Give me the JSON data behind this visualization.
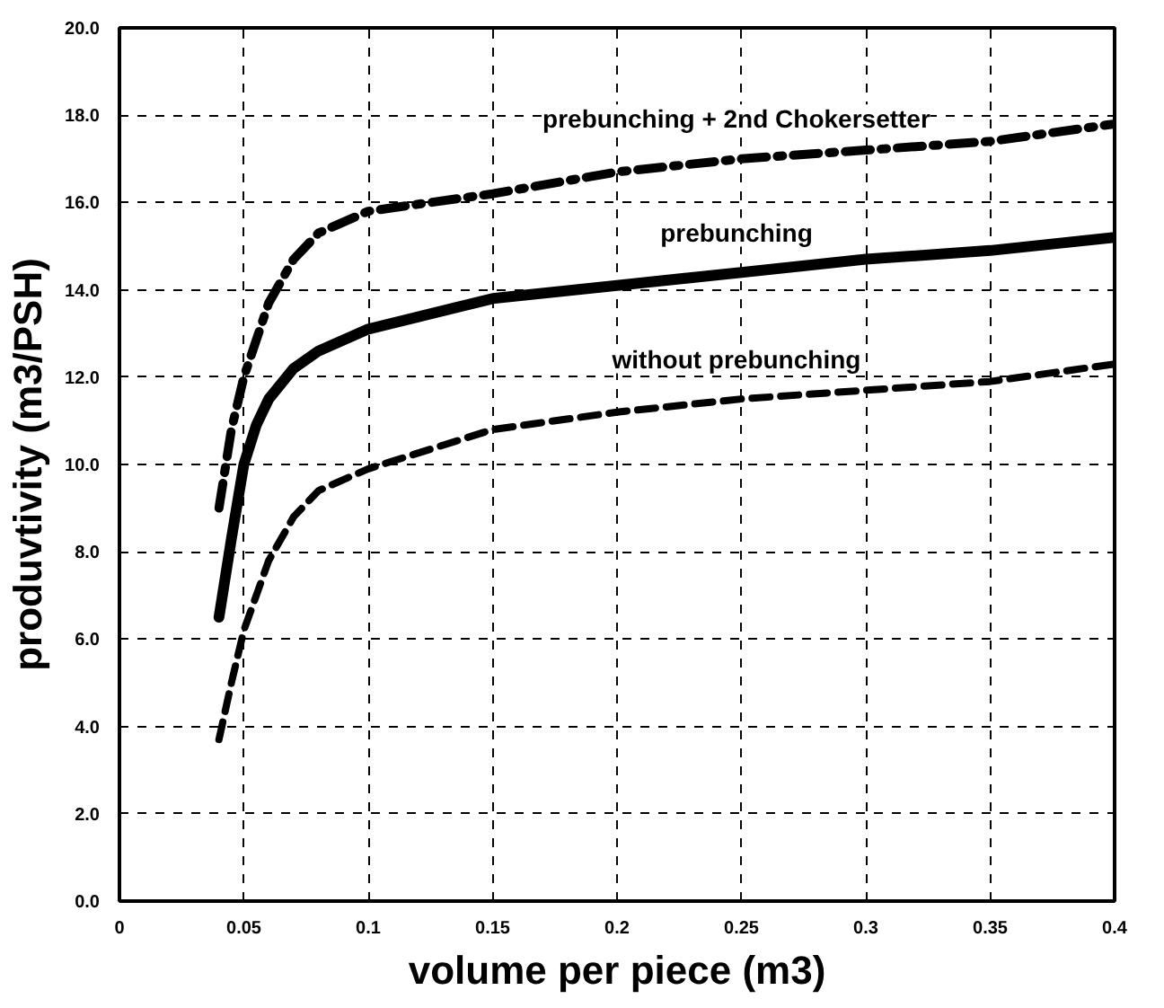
{
  "chart_data": {
    "type": "line",
    "xlabel": "volume per piece (m3)",
    "ylabel": "produvtivity (m3/PSH)",
    "xlim": [
      0,
      0.4
    ],
    "ylim": [
      0,
      20
    ],
    "xticks": [
      0,
      0.05,
      0.1,
      0.15,
      0.2,
      0.25,
      0.3,
      0.35,
      0.4
    ],
    "yticks": [
      {
        "value": 0,
        "label": "0.0"
      },
      {
        "value": 2,
        "label": "2.0"
      },
      {
        "value": 4,
        "label": "4.0"
      },
      {
        "value": 6,
        "label": "6.0"
      },
      {
        "value": 8,
        "label": "8.0"
      },
      {
        "value": 10,
        "label": "10.0"
      },
      {
        "value": 12,
        "label": "12.0"
      },
      {
        "value": 14,
        "label": "14.0"
      },
      {
        "value": 16,
        "label": "16.0"
      },
      {
        "value": 18,
        "label": "18.0"
      },
      {
        "value": 20,
        "label": "20.0"
      }
    ],
    "grid": true,
    "marker": "none",
    "series": [
      {
        "name": "prebunching + 2nd Chokersetter",
        "color": "#000000",
        "line_style": "dashdot",
        "x": [
          0.04,
          0.045,
          0.05,
          0.06,
          0.07,
          0.08,
          0.1,
          0.15,
          0.2,
          0.25,
          0.3,
          0.35,
          0.4
        ],
        "values": [
          9.0,
          10.8,
          12.0,
          13.7,
          14.7,
          15.3,
          15.8,
          16.2,
          16.7,
          17.0,
          17.2,
          17.4,
          17.8
        ]
      },
      {
        "name": "prebunching",
        "color": "#000000",
        "line_style": "solid",
        "x": [
          0.04,
          0.045,
          0.05,
          0.055,
          0.06,
          0.07,
          0.08,
          0.1,
          0.15,
          0.2,
          0.25,
          0.3,
          0.35,
          0.4
        ],
        "values": [
          6.5,
          8.3,
          10.0,
          10.9,
          11.5,
          12.2,
          12.6,
          13.1,
          13.8,
          14.1,
          14.4,
          14.7,
          14.9,
          15.2
        ]
      },
      {
        "name": "without prebunching",
        "color": "#000000",
        "line_style": "dashed",
        "x": [
          0.04,
          0.045,
          0.05,
          0.06,
          0.07,
          0.08,
          0.1,
          0.15,
          0.2,
          0.25,
          0.3,
          0.35,
          0.4
        ],
        "values": [
          3.7,
          5.0,
          6.2,
          7.8,
          8.8,
          9.4,
          9.9,
          10.8,
          11.2,
          11.5,
          11.7,
          11.9,
          12.3
        ]
      }
    ]
  }
}
